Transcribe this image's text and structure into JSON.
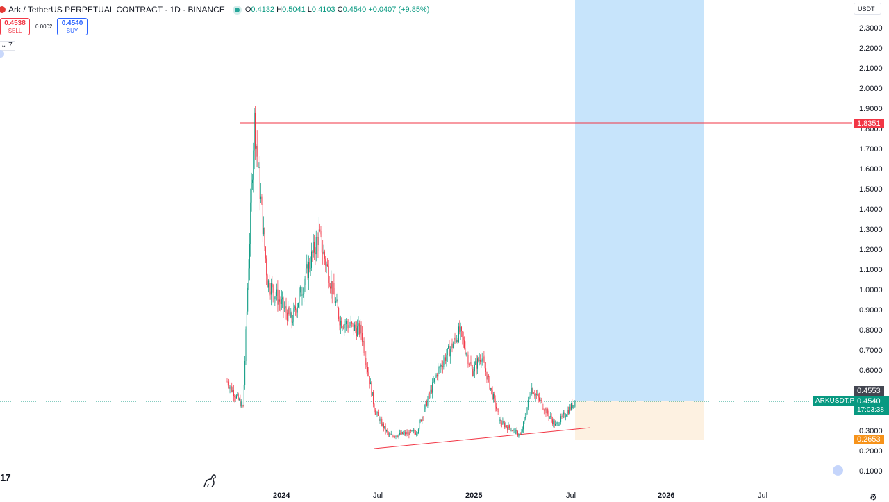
{
  "header": {
    "title": "Ark / TetherUS PERPETUAL CONTRACT · 1D · BINANCE",
    "ohlc": [
      {
        "key": "O",
        "value": "0.4132"
      },
      {
        "key": "H",
        "value": "0.5041"
      },
      {
        "key": "L",
        "value": "0.4103"
      },
      {
        "key": "C",
        "value": "0.4540"
      }
    ],
    "change": "+0.0407 (+9.85%)"
  },
  "trade": {
    "sell_price": "0.4538",
    "sell_label": "SELL",
    "buy_price": "0.4540",
    "buy_label": "BUY",
    "spread": "0.0002"
  },
  "indicators_collapse": "7",
  "currency": "USDT",
  "price_axis": [
    "2.3000",
    "2.2000",
    "2.1000",
    "2.0000",
    "1.9000",
    "1.8000",
    "1.7000",
    "1.6000",
    "1.5000",
    "1.4000",
    "1.3000",
    "1.2000",
    "1.1000",
    "1.0000",
    "0.9000",
    "0.8000",
    "0.7000",
    "0.6000",
    "0.3000",
    "0.2000",
    "0.1000"
  ],
  "time_axis": [
    {
      "label": "2024",
      "bold": true
    },
    {
      "label": "Jul",
      "bold": false
    },
    {
      "label": "2025",
      "bold": true
    },
    {
      "label": "Jul",
      "bold": false
    },
    {
      "label": "2026",
      "bold": true
    },
    {
      "label": "Jul",
      "bold": false
    }
  ],
  "tags": {
    "resistance": "1.8351",
    "target_high": "0.4553",
    "symbol": "ARKUSDT.P",
    "last_price": "0.4540",
    "countdown": "17:03:38",
    "stop": "0.2653"
  },
  "colors": {
    "up": "#089981",
    "down": "#f23645",
    "target_zone": "#c7e4fb",
    "stop_zone": "#fdf1e1",
    "resistance_line": "#f23645",
    "stop_tag": "#f7931a",
    "last_tag": "#089981",
    "target_tag": "#434651"
  },
  "chart_data": {
    "type": "candlestick",
    "title": "Ark / TetherUS PERPETUAL CONTRACT · 1D · BINANCE",
    "x_ticks": [
      "2024",
      "Jul",
      "2025",
      "Jul",
      "2026",
      "Jul"
    ],
    "y_range": [
      0.1,
      2.3
    ],
    "approx_closes": [
      {
        "date": "2023-10",
        "close": 0.55
      },
      {
        "date": "2023-11-15",
        "close": 0.42
      },
      {
        "date": "2023-12-10",
        "close": 1.85
      },
      {
        "date": "2024-01",
        "close": 1.05
      },
      {
        "date": "2024-02",
        "close": 0.85
      },
      {
        "date": "2024-03-20",
        "close": 1.28
      },
      {
        "date": "2024-04",
        "close": 0.85
      },
      {
        "date": "2024-05",
        "close": 0.8
      },
      {
        "date": "2024-06",
        "close": 0.4
      },
      {
        "date": "2024-07",
        "close": 0.28
      },
      {
        "date": "2024-08",
        "close": 0.3
      },
      {
        "date": "2024-10",
        "close": 0.6
      },
      {
        "date": "2024-11-20",
        "close": 0.8
      },
      {
        "date": "2024-12",
        "close": 0.6
      },
      {
        "date": "2025-01",
        "close": 0.68
      },
      {
        "date": "2025-03",
        "close": 0.35
      },
      {
        "date": "2025-04",
        "close": 0.28
      },
      {
        "date": "2025-05",
        "close": 0.52
      },
      {
        "date": "2025-06",
        "close": 0.33
      },
      {
        "date": "2025-07-10",
        "close": 0.454
      }
    ],
    "annotations": {
      "resistance": 1.8351,
      "position": {
        "entry": 0.454,
        "target": 0.4553,
        "stop": 0.2653
      }
    }
  }
}
